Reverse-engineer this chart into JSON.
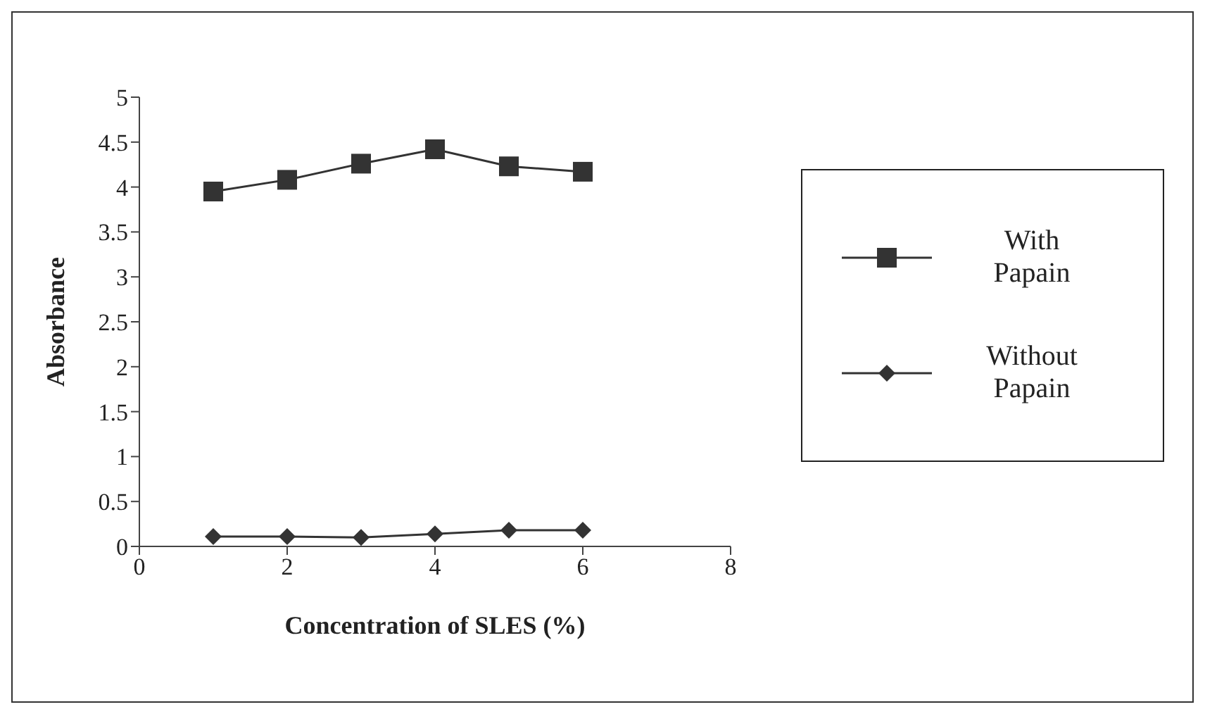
{
  "chart_data": {
    "type": "line",
    "xlabel": "Concentration of SLES (%)",
    "ylabel": "Absorbance",
    "x": [
      1,
      2,
      3,
      4,
      5,
      6
    ],
    "xlim": [
      0,
      8
    ],
    "xticks": [
      0,
      2,
      4,
      6,
      8
    ],
    "ylim": [
      0,
      5
    ],
    "yticks": [
      0,
      0.5,
      1,
      1.5,
      2,
      2.5,
      3,
      3.5,
      4,
      4.5,
      5
    ],
    "grid": false,
    "legend": "right",
    "series": [
      {
        "name": "With Papain",
        "color": "#333333",
        "marker": "square",
        "values": [
          3.95,
          4.08,
          4.26,
          4.42,
          4.23,
          4.17
        ]
      },
      {
        "name": "Without Papain",
        "color": "#333333",
        "marker": "diamond",
        "values": [
          0.11,
          0.11,
          0.1,
          0.14,
          0.18,
          0.18
        ]
      }
    ]
  }
}
